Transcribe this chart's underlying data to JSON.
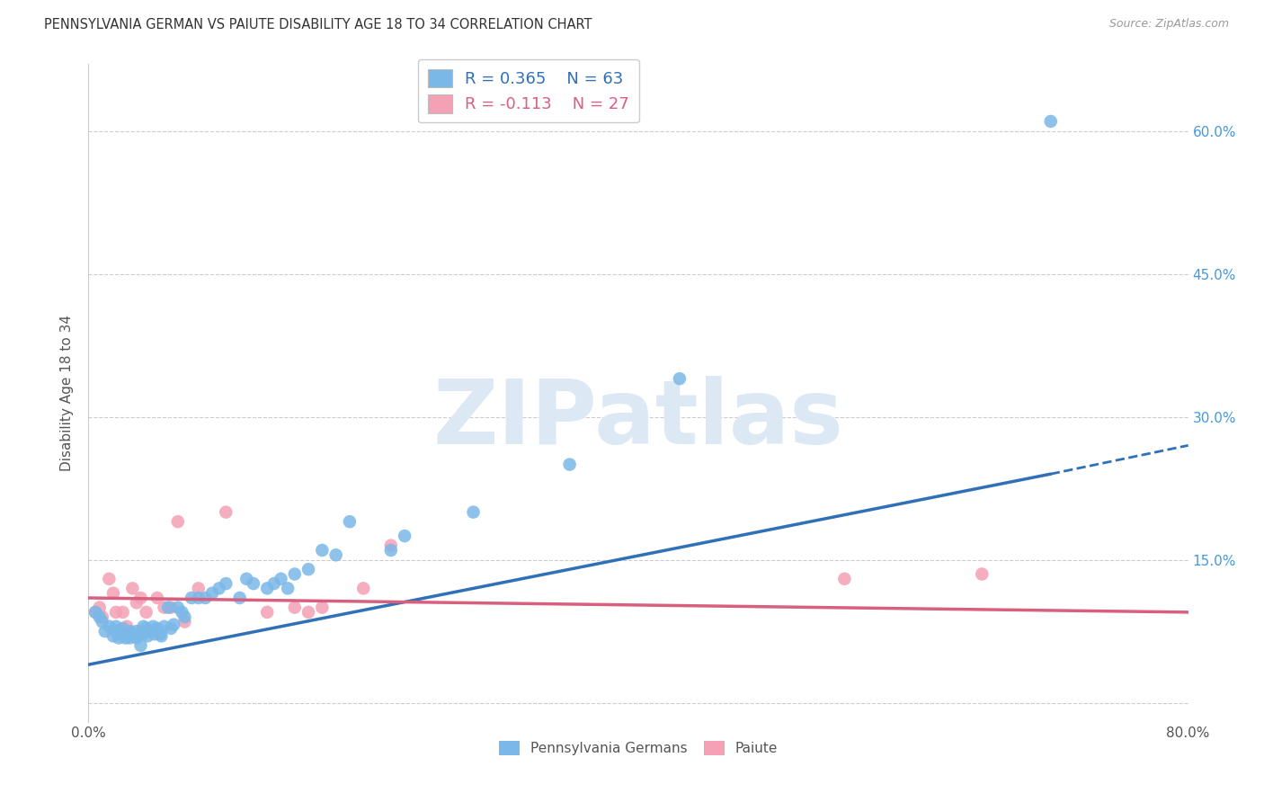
{
  "title": "PENNSYLVANIA GERMAN VS PAIUTE DISABILITY AGE 18 TO 34 CORRELATION CHART",
  "source": "Source: ZipAtlas.com",
  "ylabel": "Disability Age 18 to 34",
  "xlim": [
    0.0,
    0.8
  ],
  "ylim": [
    -0.02,
    0.67
  ],
  "xticks": [
    0.0,
    0.8
  ],
  "xticklabels": [
    "0.0%",
    "80.0%"
  ],
  "ytick_positions": [
    0.0,
    0.15,
    0.3,
    0.45,
    0.6
  ],
  "right_ytick_labels": [
    "",
    "15.0%",
    "30.0%",
    "45.0%",
    "60.0%"
  ],
  "blue_r": 0.365,
  "blue_n": 63,
  "pink_r": -0.113,
  "pink_n": 27,
  "blue_color": "#7ab8e8",
  "pink_color": "#f4a0b5",
  "blue_line_color": "#3070b8",
  "pink_line_color": "#d95f7f",
  "grid_color": "#cccccc",
  "bg_color": "#ffffff",
  "watermark_color": "#dde8f5",
  "blue_x": [
    0.005,
    0.008,
    0.01,
    0.012,
    0.015,
    0.018,
    0.02,
    0.02,
    0.022,
    0.022,
    0.025,
    0.025,
    0.027,
    0.028,
    0.03,
    0.03,
    0.032,
    0.033,
    0.035,
    0.035,
    0.038,
    0.038,
    0.04,
    0.04,
    0.042,
    0.043,
    0.045,
    0.047,
    0.048,
    0.05,
    0.052,
    0.053,
    0.055,
    0.058,
    0.06,
    0.062,
    0.065,
    0.068,
    0.07,
    0.075,
    0.08,
    0.085,
    0.09,
    0.095,
    0.1,
    0.11,
    0.115,
    0.12,
    0.13,
    0.135,
    0.14,
    0.145,
    0.15,
    0.16,
    0.17,
    0.18,
    0.19,
    0.22,
    0.23,
    0.28,
    0.35,
    0.43,
    0.7
  ],
  "blue_y": [
    0.095,
    0.09,
    0.085,
    0.075,
    0.08,
    0.07,
    0.075,
    0.08,
    0.072,
    0.068,
    0.078,
    0.072,
    0.068,
    0.073,
    0.075,
    0.068,
    0.072,
    0.07,
    0.075,
    0.068,
    0.073,
    0.06,
    0.08,
    0.072,
    0.078,
    0.07,
    0.075,
    0.08,
    0.072,
    0.078,
    0.072,
    0.07,
    0.08,
    0.1,
    0.078,
    0.082,
    0.1,
    0.095,
    0.09,
    0.11,
    0.11,
    0.11,
    0.115,
    0.12,
    0.125,
    0.11,
    0.13,
    0.125,
    0.12,
    0.125,
    0.13,
    0.12,
    0.135,
    0.14,
    0.16,
    0.155,
    0.19,
    0.16,
    0.175,
    0.2,
    0.25,
    0.34,
    0.61
  ],
  "pink_x": [
    0.005,
    0.008,
    0.01,
    0.015,
    0.018,
    0.02,
    0.025,
    0.028,
    0.032,
    0.035,
    0.038,
    0.042,
    0.05,
    0.055,
    0.06,
    0.065,
    0.07,
    0.08,
    0.1,
    0.13,
    0.15,
    0.16,
    0.17,
    0.2,
    0.22,
    0.55,
    0.65
  ],
  "pink_y": [
    0.095,
    0.1,
    0.09,
    0.13,
    0.115,
    0.095,
    0.095,
    0.08,
    0.12,
    0.105,
    0.11,
    0.095,
    0.11,
    0.1,
    0.1,
    0.19,
    0.085,
    0.12,
    0.2,
    0.095,
    0.1,
    0.095,
    0.1,
    0.12,
    0.165,
    0.13,
    0.135
  ],
  "blue_line_x0": 0.0,
  "blue_line_y0": 0.04,
  "blue_line_x_solid_end": 0.7,
  "blue_line_y_solid_end": 0.24,
  "blue_line_x1": 0.8,
  "blue_line_y1": 0.27,
  "pink_line_x0": 0.0,
  "pink_line_y0": 0.11,
  "pink_line_x1": 0.8,
  "pink_line_y1": 0.095
}
